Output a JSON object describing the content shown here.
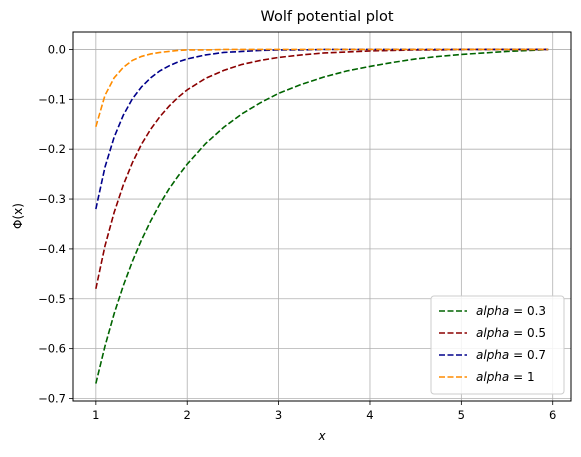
{
  "chart_data": {
    "type": "line",
    "title": "Wolf potential plot",
    "xlabel": "x",
    "ylabel": "Φ(x)",
    "xlim": [
      0.75,
      6.2
    ],
    "ylim": [
      -0.705,
      0.035
    ],
    "xticks": [
      1,
      2,
      3,
      4,
      5,
      6
    ],
    "yticks": [
      0.0,
      -0.1,
      -0.2,
      -0.3,
      -0.4,
      -0.5,
      -0.6,
      -0.7
    ],
    "xtick_labels": [
      "1",
      "2",
      "3",
      "4",
      "5",
      "6"
    ],
    "ytick_labels": [
      "0.0",
      "−0.1",
      "−0.2",
      "−0.3",
      "−0.4",
      "−0.5",
      "−0.6",
      "−0.7"
    ],
    "grid": true,
    "legend_position": "bottom-right",
    "line_style": "dashed",
    "x": [
      1.0,
      1.1,
      1.2,
      1.3,
      1.4,
      1.5,
      1.6,
      1.7,
      1.8,
      1.9,
      2.0,
      2.2,
      2.4,
      2.6,
      2.8,
      3.0,
      3.25,
      3.5,
      3.75,
      4.0,
      4.25,
      4.5,
      4.75,
      5.0,
      5.25,
      5.5,
      5.75,
      5.95
    ],
    "series": [
      {
        "name_prefix": "alpha",
        "name_value": "0.3",
        "color": "#006400",
        "values": [
          -0.67,
          -0.595,
          -0.53,
          -0.474,
          -0.425,
          -0.382,
          -0.344,
          -0.31,
          -0.28,
          -0.254,
          -0.23,
          -0.189,
          -0.156,
          -0.129,
          -0.107,
          -0.088,
          -0.07,
          -0.055,
          -0.043,
          -0.034,
          -0.026,
          -0.019,
          -0.014,
          -0.01,
          -0.007,
          -0.004,
          -0.002,
          0.0
        ]
      },
      {
        "name_prefix": "alpha",
        "name_value": "0.5",
        "color": "#8b0000",
        "values": [
          -0.48,
          -0.394,
          -0.327,
          -0.272,
          -0.227,
          -0.19,
          -0.16,
          -0.135,
          -0.114,
          -0.096,
          -0.081,
          -0.058,
          -0.042,
          -0.03,
          -0.022,
          -0.016,
          -0.011,
          -0.007,
          -0.005,
          -0.003,
          -0.002,
          -0.001,
          -0.001,
          0.0,
          0.0,
          0.0,
          0.0,
          0.0
        ]
      },
      {
        "name_prefix": "alpha",
        "name_value": "0.7",
        "color": "#00008b",
        "values": [
          -0.32,
          -0.236,
          -0.176,
          -0.132,
          -0.099,
          -0.075,
          -0.057,
          -0.043,
          -0.033,
          -0.025,
          -0.019,
          -0.011,
          -0.006,
          -0.004,
          -0.002,
          -0.001,
          -0.001,
          0.0,
          0.0,
          0.0,
          0.0,
          0.0,
          0.0,
          0.0,
          0.0,
          0.0,
          0.0,
          0.0
        ]
      },
      {
        "name_prefix": "alpha",
        "name_value": "1",
        "color": "#ff8c00",
        "values": [
          -0.155,
          -0.092,
          -0.057,
          -0.036,
          -0.022,
          -0.014,
          -0.009,
          -0.006,
          -0.004,
          -0.002,
          -0.001,
          -0.001,
          0.0,
          0.0,
          0.0,
          0.0,
          0.0,
          0.0,
          0.0,
          0.0,
          0.0,
          0.0,
          0.0,
          0.0,
          0.0,
          0.0,
          0.0,
          0.0
        ]
      }
    ]
  }
}
